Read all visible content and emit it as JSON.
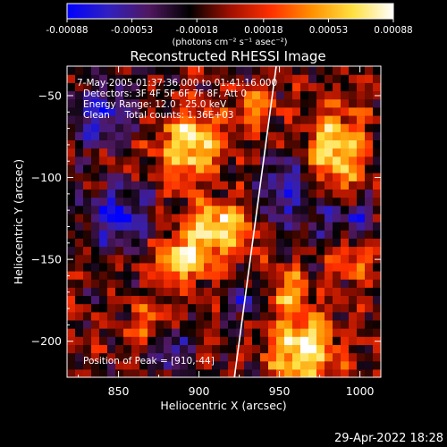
{
  "chart_data": {
    "type": "heatmap",
    "title": "Reconstructed RHESSI Image",
    "xlabel": "Heliocentric X (arcsec)",
    "ylabel": "Heliocentric Y (arcsec)",
    "xlim": [
      818,
      1013
    ],
    "ylim": [
      -222,
      -32
    ],
    "x_ticks": [
      850,
      900,
      950,
      1000
    ],
    "y_ticks": [
      -50,
      -100,
      -150,
      -200
    ],
    "colorbar": {
      "range": [
        -0.00088,
        0.00088
      ],
      "tick_labels": [
        "-0.00088",
        "-0.00053",
        "-0.00018",
        "0.00018",
        "0.00053",
        "0.00088"
      ],
      "unit_label": "(photons cm⁻² s⁻¹ asec⁻²)",
      "colormap": [
        "#0000ff",
        "#3020c0",
        "#501860",
        "#000000",
        "#a01000",
        "#ff3000",
        "#ff9000",
        "#ffe040",
        "#ffffff"
      ]
    },
    "annotations": [
      "7-May-2005 01:37:36.000 to 01:41:16.000",
      "Detectors: 3F 4F 5F 6F 7F 8F, Att 0",
      "Energy Range: 12.0 - 25.0 keV",
      "Clean     Total counts: 1.36E+03"
    ],
    "peak_label": "Position of Peak = [910,-44]",
    "peak": [
      910,
      -44
    ],
    "limb": [
      [
        948,
        -32
      ],
      [
        922,
        -222
      ]
    ],
    "sources": [
      {
        "x": 895,
        "y": -80,
        "amp": 1.0,
        "sx": 14,
        "sy": 14
      },
      {
        "x": 915,
        "y": -130,
        "amp": 1.05,
        "sx": 14,
        "sy": 11
      },
      {
        "x": 890,
        "y": -150,
        "amp": 0.9,
        "sx": 12,
        "sy": 10
      },
      {
        "x": 985,
        "y": -85,
        "amp": 1.0,
        "sx": 12,
        "sy": 18
      },
      {
        "x": 965,
        "y": -205,
        "amp": 1.1,
        "sx": 14,
        "sy": 14
      },
      {
        "x": 955,
        "y": -170,
        "amp": 0.6,
        "sx": 10,
        "sy": 10
      },
      {
        "x": 870,
        "y": -190,
        "amp": 0.6,
        "sx": 10,
        "sy": 10
      },
      {
        "x": 995,
        "y": -150,
        "amp": 0.5,
        "sx": 9,
        "sy": 9
      },
      {
        "x": 935,
        "y": -55,
        "amp": 0.55,
        "sx": 9,
        "sy": 9
      },
      {
        "x": 850,
        "y": -125,
        "amp": -0.75,
        "sx": 14,
        "sy": 14
      },
      {
        "x": 840,
        "y": -60,
        "amp": -0.7,
        "sx": 14,
        "sy": 14
      },
      {
        "x": 955,
        "y": -110,
        "amp": -0.6,
        "sx": 16,
        "sy": 16
      },
      {
        "x": 880,
        "y": -205,
        "amp": -0.7,
        "sx": 10,
        "sy": 10
      },
      {
        "x": 995,
        "y": -125,
        "amp": -0.55,
        "sx": 12,
        "sy": 10
      },
      {
        "x": 930,
        "y": -175,
        "amp": -0.5,
        "sx": 10,
        "sy": 10
      }
    ]
  },
  "footer_timestamp": "29-Apr-2022 18:28"
}
